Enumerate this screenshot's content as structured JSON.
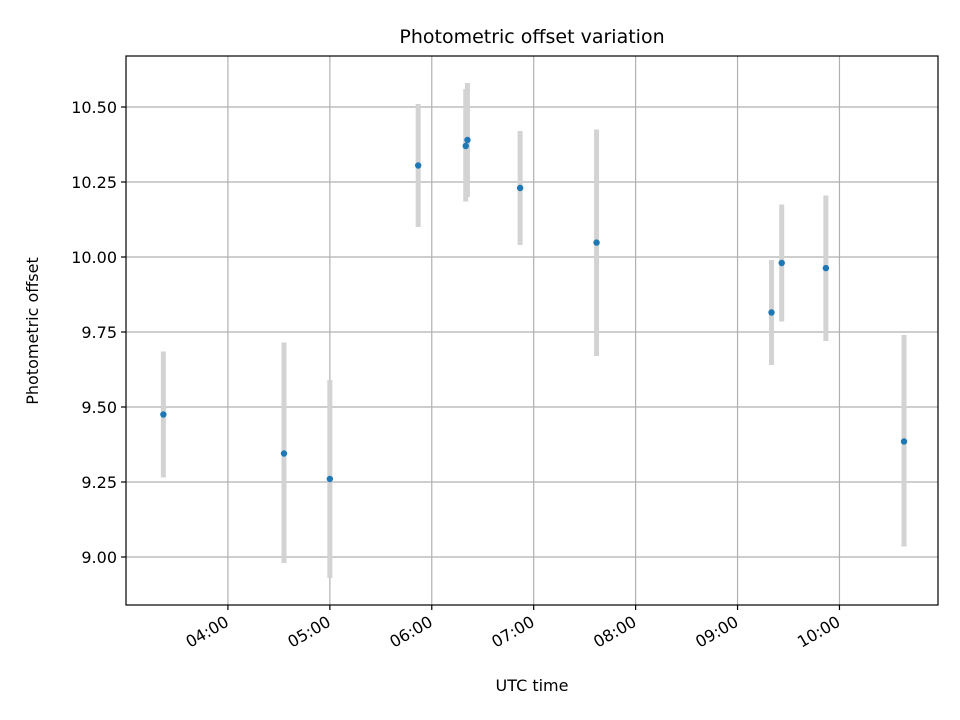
{
  "chart_data": {
    "type": "scatter",
    "title": "Photometric offset variation",
    "xlabel": "UTC time",
    "ylabel": "Photometric offset",
    "x_format": "HH:MM",
    "xlim": [
      "03:00",
      "10:58"
    ],
    "ylim": [
      8.84,
      10.67
    ],
    "grid": true,
    "x_ticks": [
      "04:00",
      "05:00",
      "06:00",
      "07:00",
      "08:00",
      "09:00",
      "10:00"
    ],
    "y_ticks": [
      9.0,
      9.25,
      9.5,
      9.75,
      10.0,
      10.25,
      10.5
    ],
    "y_tick_labels": [
      "9.00",
      "9.25",
      "9.50",
      "9.75",
      "10.00",
      "10.25",
      "10.50"
    ],
    "colors": {
      "points": "#1f77b4",
      "errorbars": "#d3d3d3",
      "grid": "#b0b0b0"
    },
    "points": [
      {
        "x": "03:22",
        "y": 9.475,
        "err_low": 9.265,
        "err_high": 9.685
      },
      {
        "x": "04:33",
        "y": 9.345,
        "err_low": 8.98,
        "err_high": 9.715
      },
      {
        "x": "05:00",
        "y": 9.26,
        "err_low": 8.93,
        "err_high": 9.59
      },
      {
        "x": "05:52",
        "y": 10.305,
        "err_low": 10.1,
        "err_high": 10.51
      },
      {
        "x": "06:20",
        "y": 10.37,
        "err_low": 10.185,
        "err_high": 10.56
      },
      {
        "x": "06:21",
        "y": 10.39,
        "err_low": 10.2,
        "err_high": 10.58
      },
      {
        "x": "06:52",
        "y": 10.23,
        "err_low": 10.04,
        "err_high": 10.42
      },
      {
        "x": "07:37",
        "y": 10.048,
        "err_low": 9.67,
        "err_high": 10.425
      },
      {
        "x": "09:20",
        "y": 9.815,
        "err_low": 9.64,
        "err_high": 9.99
      },
      {
        "x": "09:26",
        "y": 9.98,
        "err_low": 9.785,
        "err_high": 10.175
      },
      {
        "x": "09:52",
        "y": 9.963,
        "err_low": 9.72,
        "err_high": 10.205
      },
      {
        "x": "10:38",
        "y": 9.385,
        "err_low": 9.035,
        "err_high": 9.74
      }
    ]
  }
}
